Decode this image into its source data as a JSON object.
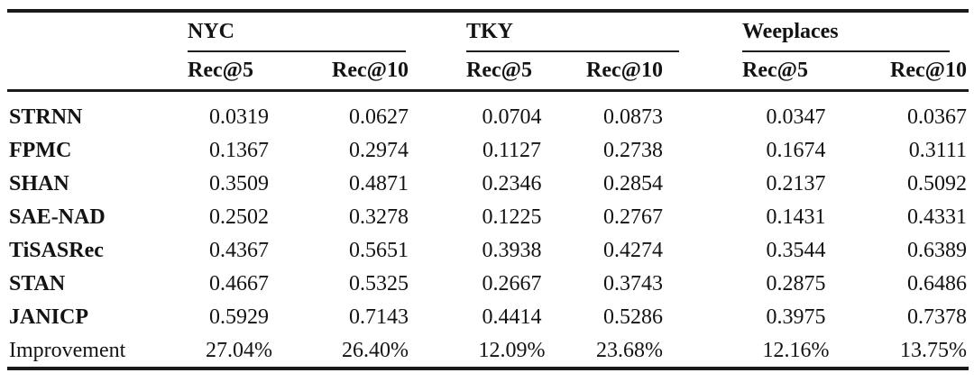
{
  "table": {
    "groups": [
      {
        "label": "NYC",
        "sub": [
          "Rec@5",
          "Rec@10"
        ]
      },
      {
        "label": "TKY",
        "sub": [
          "Rec@5",
          "Rec@10"
        ]
      },
      {
        "label": "Weeplaces",
        "sub": [
          "Rec@5",
          "Rec@10"
        ]
      }
    ],
    "rows": [
      {
        "model": "STRNN",
        "values": [
          "0.0319",
          "0.0627",
          "0.0704",
          "0.0873",
          "0.0347",
          "0.0367"
        ]
      },
      {
        "model": "FPMC",
        "values": [
          "0.1367",
          "0.2974",
          "0.1127",
          "0.2738",
          "0.1674",
          "0.3111"
        ]
      },
      {
        "model": "SHAN",
        "values": [
          "0.3509",
          "0.4871",
          "0.2346",
          "0.2854",
          "0.2137",
          "0.5092"
        ]
      },
      {
        "model": "SAE-NAD",
        "values": [
          "0.2502",
          "0.3278",
          "0.1225",
          "0.2767",
          "0.1431",
          "0.4331"
        ]
      },
      {
        "model": "TiSASRec",
        "values": [
          "0.4367",
          "0.5651",
          "0.3938",
          "0.4274",
          "0.3544",
          "0.6389"
        ]
      },
      {
        "model": "STAN",
        "values": [
          "0.4667",
          "0.5325",
          "0.2667",
          "0.3743",
          "0.2875",
          "0.6486"
        ]
      },
      {
        "model": "JANICP",
        "values": [
          "0.5929",
          "0.7143",
          "0.4414",
          "0.5286",
          "0.3975",
          "0.7378"
        ]
      },
      {
        "model": "Improvement",
        "values": [
          "27.04%",
          "26.40%",
          "12.09%",
          "23.68%",
          "12.16%",
          "13.75%"
        ]
      }
    ],
    "colors": {
      "text": "#131313",
      "rule": "#1a1a1a",
      "background": "#ffffff"
    }
  }
}
